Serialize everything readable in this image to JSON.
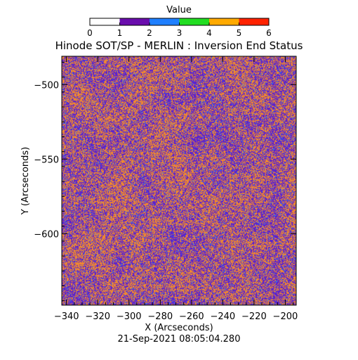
{
  "chart_data": {
    "type": "heatmap",
    "title": "Hinode SOT/SP - MERLIN : Inversion End Status",
    "xlabel": "X (Arcseconds)",
    "ylabel": "Y (Arcseconds)",
    "timestamp": "21-Sep-2021 08:05:04.280",
    "xlim": [
      -343,
      -193
    ],
    "ylim": [
      -648,
      -481
    ],
    "xticks": [
      -340,
      -320,
      -300,
      -280,
      -260,
      -240,
      -220,
      -200
    ],
    "xtick_labels": [
      "−340",
      "−320",
      "−300",
      "−280",
      "−260",
      "−240",
      "−220",
      "−200"
    ],
    "yticks": [
      -500,
      -550,
      -600
    ],
    "ytick_labels": [
      "−500",
      "−550",
      "−600"
    ],
    "grid": false,
    "colorbar": {
      "title": "Value",
      "range": [
        0,
        6
      ],
      "ticks": [
        0,
        1,
        2,
        3,
        4,
        5,
        6
      ],
      "tick_labels": [
        "0",
        "1",
        "2",
        "3",
        "4",
        "5",
        "6"
      ],
      "colors": [
        "#ffffff",
        "#6a0dad",
        "#1f7fff",
        "#22dd22",
        "#ffaa00",
        "#ff2200"
      ]
    },
    "value_fractions": {
      "1": 0.48,
      "2": 0.05,
      "5": 0.47
    },
    "value_colors": {
      "1": "#5a22d0",
      "2": "#2f7ff0",
      "5": "#f0892e"
    }
  }
}
